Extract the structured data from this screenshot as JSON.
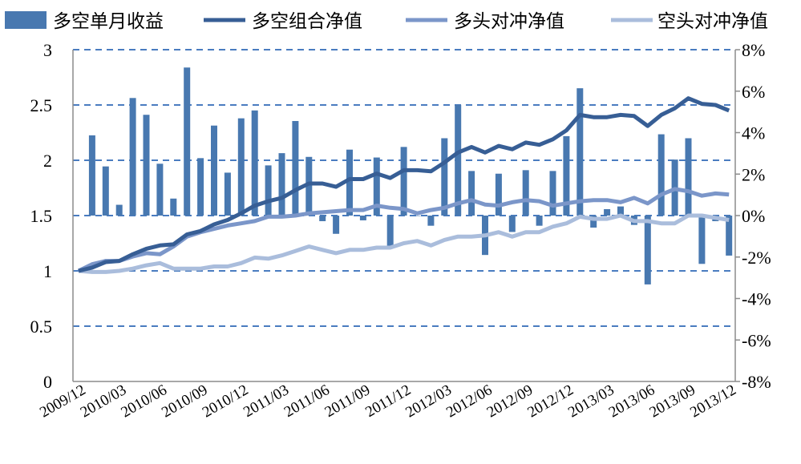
{
  "chart_data": {
    "type": "bar+line",
    "title": "",
    "colors": {
      "bar": "#4878B0",
      "long_short": "#375E95",
      "long_hedge": "#7B96C9",
      "short_hedge": "#AABDDC",
      "grid": "#4A7CC0",
      "axis": "#8C8C8C"
    },
    "legend": {
      "placement": "top",
      "entries": [
        "多空单月收益",
        "多空组合净值",
        "多头对冲净值",
        "空头对冲净值"
      ]
    },
    "x_labels": [
      "2009/12",
      "2010/03",
      "2010/06",
      "2010/09",
      "2010/12",
      "2011/03",
      "2011/06",
      "2011/09",
      "2011/12",
      "2012/03",
      "2012/06",
      "2012/09",
      "2012/12",
      "2013/03",
      "2013/06",
      "2013/09",
      "2013/12"
    ],
    "x_months_start": "2009/12",
    "x_months_count": 49,
    "y_left": {
      "ylim": [
        0,
        3
      ],
      "ticks": [
        "0",
        "0.5",
        "1",
        "1.5",
        "2",
        "2.5",
        "3"
      ]
    },
    "y_right": {
      "ylim": [
        -8,
        8
      ],
      "ticks": [
        "-8%",
        "-6%",
        "-4%",
        "-2%",
        "0%",
        "2%",
        "4%",
        "6%",
        "8%"
      ]
    },
    "grid": true,
    "series": [
      {
        "name": "多空单月收益",
        "type": "bar",
        "axis": "right",
        "unit": "%",
        "start_index": 1,
        "values": [
          3.87,
          2.37,
          0.52,
          5.67,
          4.86,
          2.5,
          0.82,
          7.14,
          2.77,
          4.34,
          2.07,
          4.69,
          5.07,
          2.42,
          3.01,
          4.56,
          2.83,
          -0.27,
          -0.88,
          3.18,
          -0.23,
          2.8,
          -1.46,
          3.31,
          0.0,
          -0.49,
          3.73,
          5.34,
          2.15,
          -1.9,
          2.02,
          -0.79,
          2.19,
          -0.49,
          2.15,
          3.83,
          6.14,
          -0.58,
          0.31,
          0.44,
          -0.45,
          -3.32,
          3.92,
          2.7,
          3.73,
          -2.33,
          -0.27,
          -1.93
        ]
      },
      {
        "name": "多空组合净值",
        "type": "line",
        "axis": "left",
        "start_index": 0,
        "values": [
          1.0,
          1.03,
          1.08,
          1.09,
          1.15,
          1.2,
          1.23,
          1.24,
          1.33,
          1.36,
          1.42,
          1.46,
          1.52,
          1.59,
          1.63,
          1.66,
          1.73,
          1.79,
          1.79,
          1.76,
          1.83,
          1.83,
          1.88,
          1.84,
          1.91,
          1.91,
          1.9,
          1.98,
          2.07,
          2.12,
          2.07,
          2.13,
          2.1,
          2.16,
          2.14,
          2.19,
          2.27,
          2.41,
          2.39,
          2.39,
          2.41,
          2.4,
          2.31,
          2.41,
          2.47,
          2.56,
          2.51,
          2.5,
          2.45
        ]
      },
      {
        "name": "多头对冲净值",
        "type": "line",
        "axis": "left",
        "start_index": 0,
        "values": [
          1.0,
          1.06,
          1.09,
          1.09,
          1.13,
          1.16,
          1.15,
          1.22,
          1.31,
          1.35,
          1.38,
          1.41,
          1.43,
          1.45,
          1.49,
          1.49,
          1.5,
          1.52,
          1.53,
          1.54,
          1.55,
          1.55,
          1.59,
          1.57,
          1.56,
          1.52,
          1.55,
          1.57,
          1.61,
          1.64,
          1.6,
          1.59,
          1.62,
          1.64,
          1.63,
          1.59,
          1.61,
          1.63,
          1.64,
          1.64,
          1.62,
          1.66,
          1.61,
          1.69,
          1.74,
          1.72,
          1.68,
          1.7,
          1.69
        ]
      },
      {
        "name": "空头对冲净值",
        "type": "line",
        "axis": "left",
        "start_index": 0,
        "values": [
          1.0,
          0.99,
          0.99,
          1.0,
          1.02,
          1.05,
          1.07,
          1.02,
          1.02,
          1.02,
          1.04,
          1.04,
          1.07,
          1.12,
          1.11,
          1.14,
          1.18,
          1.22,
          1.19,
          1.16,
          1.19,
          1.19,
          1.21,
          1.21,
          1.25,
          1.27,
          1.23,
          1.28,
          1.31,
          1.31,
          1.32,
          1.35,
          1.31,
          1.35,
          1.35,
          1.4,
          1.43,
          1.49,
          1.47,
          1.47,
          1.5,
          1.45,
          1.45,
          1.43,
          1.43,
          1.5,
          1.5,
          1.48,
          1.46
        ]
      }
    ]
  }
}
